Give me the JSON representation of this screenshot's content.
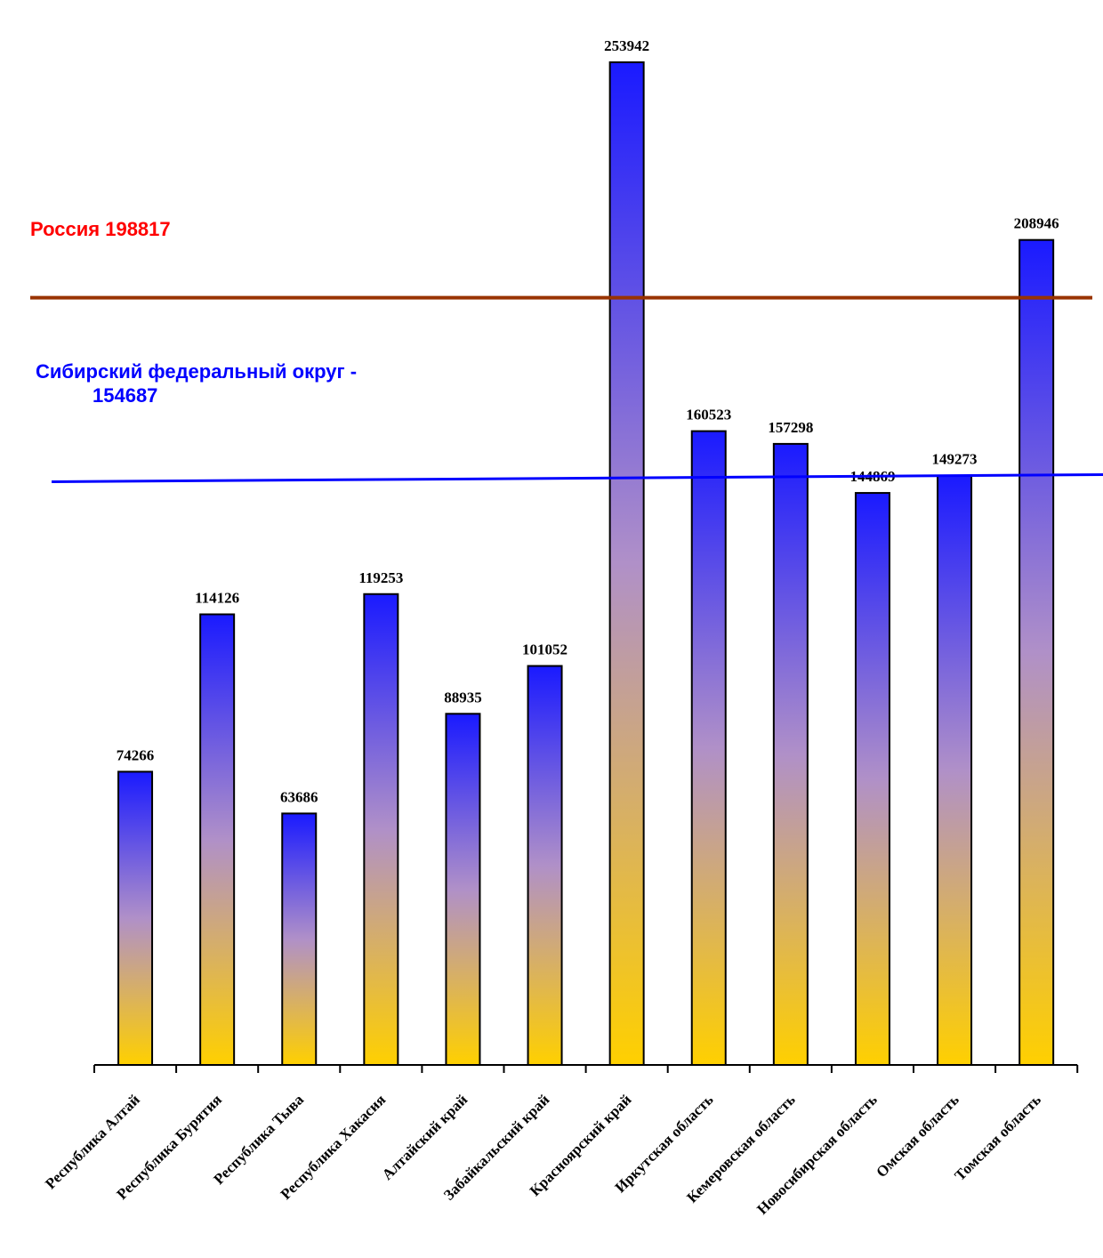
{
  "chart_data": {
    "type": "bar",
    "categories": [
      "Республика Алтай",
      "Республика Бурятия",
      "Республика Тыва",
      "Республика Хакасия",
      "Алтайский край",
      "Забайкальский край",
      "Красноярский край",
      "Иркутская область",
      "Кемеровская область",
      "Новосибирская область",
      "Омская область",
      "Томская область"
    ],
    "values": [
      74266,
      114126,
      63686,
      119253,
      88935,
      101052,
      253942,
      160523,
      157298,
      144869,
      149273,
      208946
    ],
    "value_labels": [
      "74266",
      "114126",
      "63686",
      "119253",
      "88935",
      "101052",
      "253942",
      "160523",
      "157298",
      "144869",
      "149273",
      "208946"
    ],
    "reference_lines": [
      {
        "label": "Россия 198817",
        "value": 198817,
        "color": "#993300",
        "label_color": "#ff0000"
      },
      {
        "label_line1": "Сибирский федеральный округ -",
        "label_line2": "154687",
        "value": 154687,
        "color": "#0000ff",
        "label_color": "#0000ff"
      }
    ],
    "bar_gradient": {
      "top": "#1a1aff",
      "middle": "#b090c8",
      "bottom": "#ffd000"
    },
    "ylim": [
      0,
      253942
    ],
    "grid": false,
    "legend": "none"
  }
}
